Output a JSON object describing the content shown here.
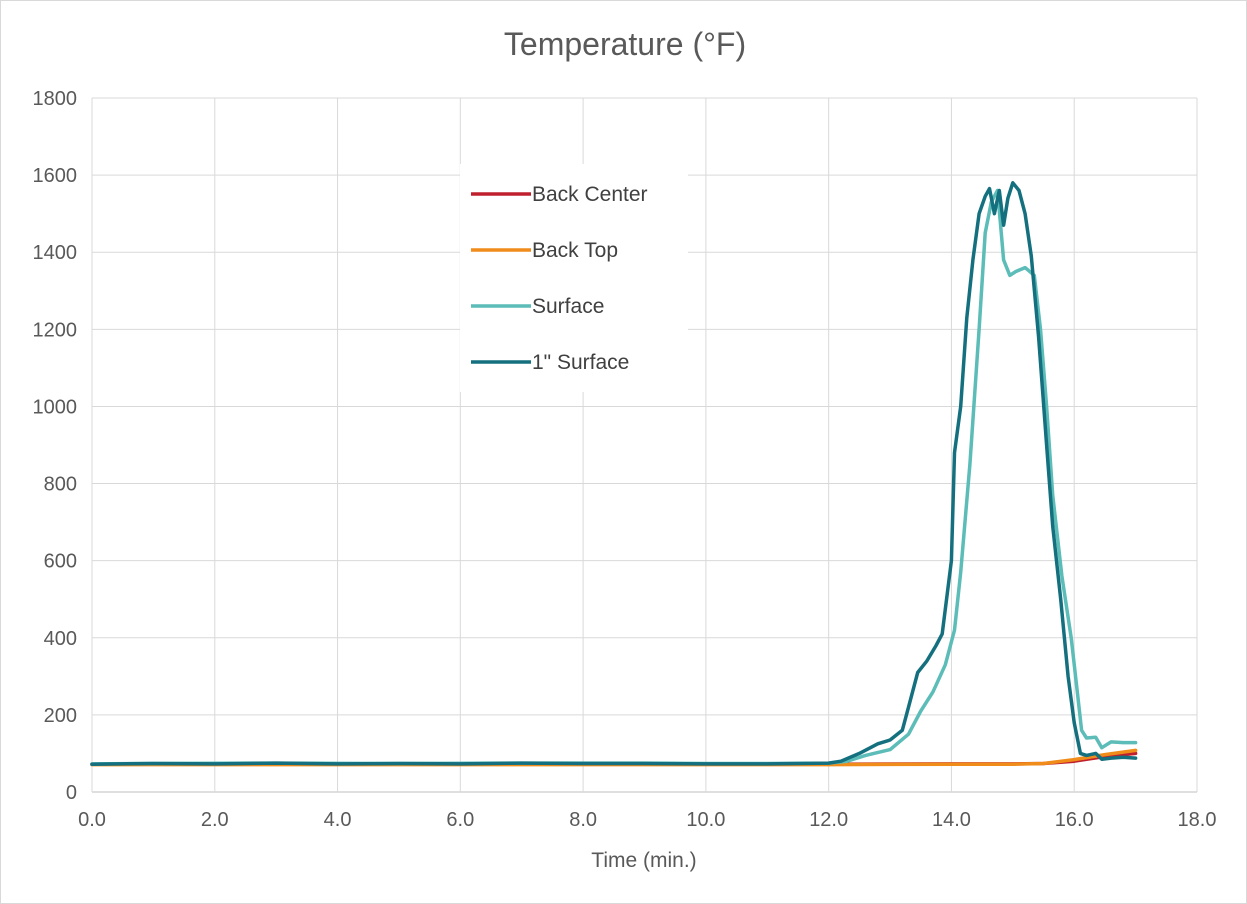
{
  "chart_data": {
    "type": "line",
    "title": "Temperature (°F)",
    "xlabel": "Time (min.)",
    "ylabel": "",
    "xlim": [
      0,
      18
    ],
    "ylim": [
      0,
      1800
    ],
    "x_ticks": [
      "0.0",
      "2.0",
      "4.0",
      "6.0",
      "8.0",
      "10.0",
      "12.0",
      "14.0",
      "16.0",
      "18.0"
    ],
    "y_ticks": [
      "0",
      "200",
      "400",
      "600",
      "800",
      "1000",
      "1200",
      "1400",
      "1600",
      "1800"
    ],
    "grid": true,
    "legend_position": "upper-center",
    "series": [
      {
        "name": "Back Center",
        "color": "#c0202e",
        "points": [
          [
            0,
            72
          ],
          [
            2,
            72
          ],
          [
            4,
            72
          ],
          [
            6,
            72
          ],
          [
            8,
            72
          ],
          [
            10,
            72
          ],
          [
            12,
            72
          ],
          [
            14,
            73
          ],
          [
            15,
            73
          ],
          [
            15.5,
            74
          ],
          [
            16,
            80
          ],
          [
            16.5,
            92
          ],
          [
            17,
            100
          ]
        ]
      },
      {
        "name": "Back Top",
        "color": "#f08c1a",
        "points": [
          [
            0,
            71
          ],
          [
            2,
            71
          ],
          [
            4,
            71
          ],
          [
            6,
            71
          ],
          [
            8,
            71
          ],
          [
            10,
            71
          ],
          [
            12,
            71
          ],
          [
            14,
            72
          ],
          [
            15,
            72
          ],
          [
            15.5,
            74
          ],
          [
            16,
            84
          ],
          [
            16.5,
            97
          ],
          [
            17,
            108
          ]
        ]
      },
      {
        "name": "Surface",
        "color": "#5bbcb8",
        "points": [
          [
            0,
            73
          ],
          [
            1,
            74
          ],
          [
            3,
            75
          ],
          [
            5,
            74
          ],
          [
            7,
            75
          ],
          [
            9,
            75
          ],
          [
            10,
            74
          ],
          [
            11,
            74
          ],
          [
            12,
            75
          ],
          [
            12.3,
            80
          ],
          [
            12.6,
            95
          ],
          [
            13,
            110
          ],
          [
            13.3,
            150
          ],
          [
            13.5,
            210
          ],
          [
            13.7,
            260
          ],
          [
            13.9,
            330
          ],
          [
            14.05,
            420
          ],
          [
            14.15,
            570
          ],
          [
            14.3,
            850
          ],
          [
            14.45,
            1200
          ],
          [
            14.55,
            1450
          ],
          [
            14.65,
            1530
          ],
          [
            14.75,
            1560
          ],
          [
            14.8,
            1470
          ],
          [
            14.85,
            1380
          ],
          [
            14.95,
            1340
          ],
          [
            15.05,
            1350
          ],
          [
            15.2,
            1360
          ],
          [
            15.35,
            1340
          ],
          [
            15.45,
            1200
          ],
          [
            15.55,
            1000
          ],
          [
            15.65,
            770
          ],
          [
            15.8,
            560
          ],
          [
            15.95,
            400
          ],
          [
            16.05,
            260
          ],
          [
            16.12,
            160
          ],
          [
            16.2,
            140
          ],
          [
            16.35,
            142
          ],
          [
            16.45,
            115
          ],
          [
            16.6,
            130
          ],
          [
            16.8,
            128
          ],
          [
            17,
            128
          ]
        ]
      },
      {
        "name": "1\" Surface",
        "color": "#14707e",
        "points": [
          [
            0,
            72
          ],
          [
            1,
            74
          ],
          [
            2,
            73
          ],
          [
            3,
            75
          ],
          [
            4,
            73
          ],
          [
            5,
            74
          ],
          [
            6,
            73
          ],
          [
            7,
            75
          ],
          [
            8,
            74
          ],
          [
            9,
            74
          ],
          [
            10,
            73
          ],
          [
            11,
            73
          ],
          [
            12,
            75
          ],
          [
            12.2,
            80
          ],
          [
            12.5,
            100
          ],
          [
            12.8,
            125
          ],
          [
            13,
            135
          ],
          [
            13.2,
            160
          ],
          [
            13.3,
            220
          ],
          [
            13.45,
            310
          ],
          [
            13.6,
            340
          ],
          [
            13.75,
            380
          ],
          [
            13.85,
            410
          ],
          [
            14.0,
            600
          ],
          [
            14.05,
            880
          ],
          [
            14.15,
            1000
          ],
          [
            14.25,
            1230
          ],
          [
            14.35,
            1380
          ],
          [
            14.45,
            1500
          ],
          [
            14.55,
            1545
          ],
          [
            14.62,
            1565
          ],
          [
            14.7,
            1500
          ],
          [
            14.78,
            1560
          ],
          [
            14.85,
            1470
          ],
          [
            14.92,
            1540
          ],
          [
            15.0,
            1580
          ],
          [
            15.1,
            1560
          ],
          [
            15.2,
            1500
          ],
          [
            15.3,
            1390
          ],
          [
            15.42,
            1180
          ],
          [
            15.55,
            900
          ],
          [
            15.65,
            690
          ],
          [
            15.78,
            500
          ],
          [
            15.9,
            300
          ],
          [
            16.0,
            180
          ],
          [
            16.1,
            100
          ],
          [
            16.2,
            95
          ],
          [
            16.35,
            100
          ],
          [
            16.45,
            85
          ],
          [
            16.6,
            88
          ],
          [
            16.8,
            90
          ],
          [
            17,
            88
          ]
        ]
      }
    ]
  }
}
